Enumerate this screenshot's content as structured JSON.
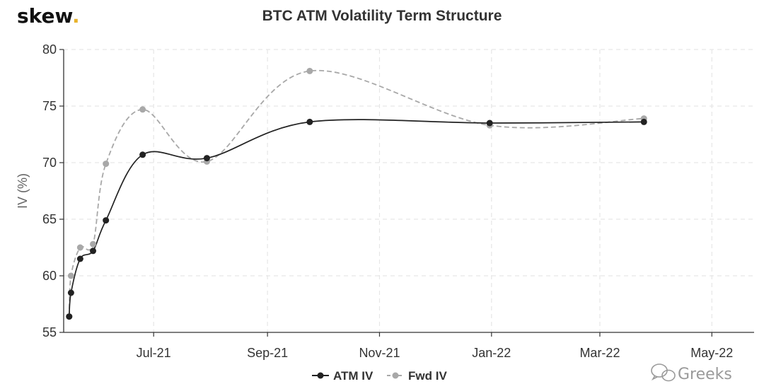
{
  "brand": {
    "name": "skew",
    "dot": ".",
    "dot_color": "#e8b32c"
  },
  "watermark": {
    "text": "Greeks",
    "icon": "wechat-icon"
  },
  "colors": {
    "atm": "#222222",
    "fwd": "#a8a8a8",
    "grid": "#e6e6e6",
    "axis": "#333333"
  },
  "chart_data": {
    "type": "line",
    "title": "BTC ATM Volatility Term Structure",
    "xlabel": "",
    "ylabel": "IV (%)",
    "ylim": [
      55,
      80
    ],
    "yticks": [
      55,
      60,
      65,
      70,
      75,
      80
    ],
    "xlim": [
      "2021-05-13",
      "2022-05-24"
    ],
    "xticks": [
      {
        "date": "2021-07-01",
        "label": "Jul-21"
      },
      {
        "date": "2021-09-01",
        "label": "Sep-21"
      },
      {
        "date": "2021-11-01",
        "label": "Nov-21"
      },
      {
        "date": "2022-01-01",
        "label": "Jan-22"
      },
      {
        "date": "2022-03-01",
        "label": "Mar-22"
      },
      {
        "date": "2022-05-01",
        "label": "May-22"
      }
    ],
    "grid": true,
    "legend": "bottom-center",
    "series": [
      {
        "name": "ATM IV",
        "style": "solid",
        "points": [
          {
            "x": "2021-05-16",
            "y": 56.4
          },
          {
            "x": "2021-05-17",
            "y": 58.5
          },
          {
            "x": "2021-05-22",
            "y": 61.5
          },
          {
            "x": "2021-05-29",
            "y": 62.2
          },
          {
            "x": "2021-06-05",
            "y": 64.9
          },
          {
            "x": "2021-06-25",
            "y": 70.7
          },
          {
            "x": "2021-07-30",
            "y": 70.4
          },
          {
            "x": "2021-09-24",
            "y": 73.6
          },
          {
            "x": "2021-12-31",
            "y": 73.5
          },
          {
            "x": "2022-03-25",
            "y": 73.6
          }
        ]
      },
      {
        "name": "Fwd IV",
        "style": "dashed",
        "points": [
          {
            "x": "2021-05-16",
            "y": 56.4
          },
          {
            "x": "2021-05-17",
            "y": 60.0
          },
          {
            "x": "2021-05-22",
            "y": 62.5
          },
          {
            "x": "2021-05-29",
            "y": 62.8
          },
          {
            "x": "2021-06-05",
            "y": 69.9
          },
          {
            "x": "2021-06-25",
            "y": 74.7
          },
          {
            "x": "2021-07-30",
            "y": 70.1
          },
          {
            "x": "2021-09-24",
            "y": 78.1
          },
          {
            "x": "2021-12-31",
            "y": 73.3
          },
          {
            "x": "2022-03-25",
            "y": 73.9
          }
        ]
      }
    ]
  }
}
